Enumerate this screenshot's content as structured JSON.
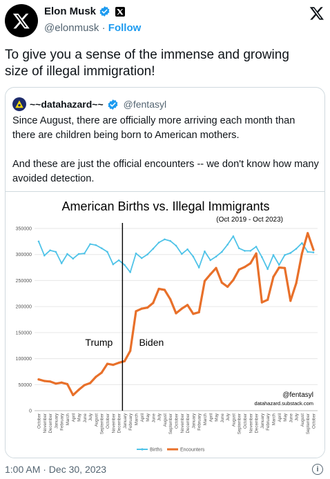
{
  "author": {
    "name": "Elon Musk",
    "handle": "@elonmusk",
    "separator": "·",
    "follow_label": "Follow"
  },
  "tweet": {
    "text": "To give you a sense of the immense and growing size of illegal immigration!",
    "timestamp": "1:00 AM · Dec 30, 2023"
  },
  "quote": {
    "name": "~~datahazard~~",
    "handle": "@fentasyl",
    "paragraph1": "Since August, there are officially more arriving each month than there are children being born to American mothers.",
    "paragraph2": "And these are just the official encounters -- we don't know how many avoided detection."
  },
  "colors": {
    "births": "#4fc3e8",
    "encounters": "#e8702a",
    "accent": "#1d9bf0"
  },
  "chart_data": {
    "type": "line",
    "title": "American Births vs. Illegal Immigrants",
    "subtitle": "(Oct 2019 - Oct 2023)",
    "ylim": [
      0,
      350000
    ],
    "yticks": [
      "0",
      "50000",
      "100000",
      "150000",
      "200000",
      "250000",
      "300000",
      "350000"
    ],
    "x": [
      "October",
      "November",
      "December",
      "January",
      "February",
      "March",
      "April",
      "May",
      "June",
      "July",
      "August",
      "September",
      "October",
      "November",
      "December",
      "January",
      "February",
      "March",
      "April",
      "May",
      "June",
      "July",
      "August",
      "September",
      "October",
      "November",
      "December",
      "January",
      "February",
      "March",
      "April",
      "May",
      "June",
      "July",
      "August",
      "September",
      "October",
      "November",
      "December",
      "January",
      "February",
      "March",
      "April",
      "May",
      "June",
      "July",
      "August",
      "September",
      "October"
    ],
    "series": [
      {
        "name": "Births",
        "values": [
          325000,
          298000,
          308000,
          305000,
          283000,
          301000,
          292000,
          301000,
          302000,
          320000,
          318000,
          312000,
          305000,
          281000,
          289000,
          280000,
          266000,
          302000,
          293000,
          300000,
          311000,
          323000,
          329000,
          326000,
          317000,
          301000,
          310000,
          296000,
          275000,
          306000,
          289000,
          296000,
          305000,
          319000,
          335000,
          312000,
          307000,
          307000,
          315000,
          295000,
          272000,
          299000,
          280000,
          299000,
          303000,
          311000,
          322000,
          305000,
          304000
        ]
      },
      {
        "name": "Encounters",
        "values": [
          60000,
          57000,
          56000,
          52000,
          54000,
          51000,
          30000,
          40000,
          49000,
          53000,
          65000,
          73000,
          90000,
          88000,
          92000,
          95000,
          115000,
          191000,
          196000,
          198000,
          207000,
          234000,
          232000,
          214000,
          187000,
          196000,
          203000,
          186000,
          189000,
          249000,
          262000,
          274000,
          246000,
          238000,
          251000,
          271000,
          276000,
          283000,
          302000,
          208000,
          213000,
          257000,
          275000,
          274000,
          211000,
          245000,
          302000,
          341000,
          309000
        ]
      }
    ],
    "annotations": [
      "Trump",
      "Biden"
    ],
    "watermark_handle": "@fentasyl",
    "watermark_site": "datahazard.substack.com",
    "divider_index": 15,
    "legend_position": "bottom",
    "grid": true
  }
}
